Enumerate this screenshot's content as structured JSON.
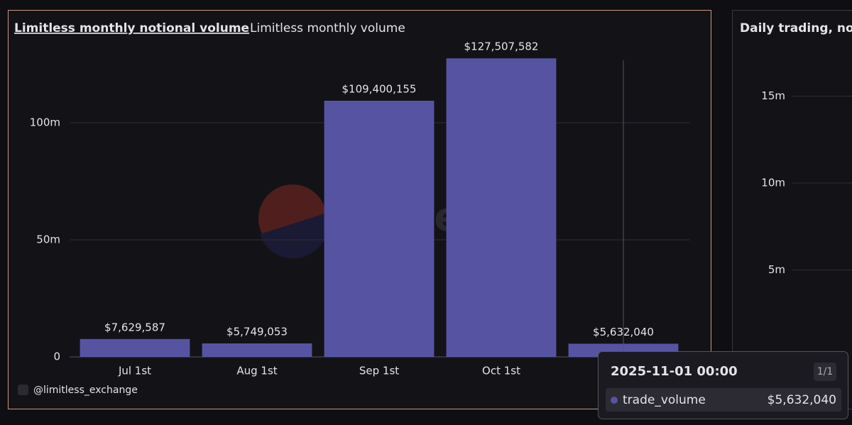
{
  "tabs": [
    "Limitless monthly notional volume",
    "Limitless monthly volume"
  ],
  "watermark": "Dune",
  "footer": "@limitless_exchange",
  "tooltip": {
    "title": "2025-11-01 00:00",
    "page": "1/1"
  },
  "chart_data": [
    {
      "type": "bar",
      "categories": [
        "Jul 1st",
        "Aug 1st",
        "Sep 1st",
        "Oct 1st",
        null
      ],
      "series": [
        {
          "name": "trade_volume",
          "color": "#5654a2",
          "values": [
            7629587,
            5749053,
            109400155,
            127507582,
            5632040
          ],
          "value_labels": [
            "$7,629,587",
            "$5,749,053",
            "$109,400,155",
            "$127,507,582",
            "$5,632,040"
          ]
        }
      ],
      "ylim": [
        0,
        130000000
      ],
      "yticks": [
        0,
        {
          "value": 50000000,
          "label": "50m"
        },
        {
          "value": 100000000,
          "label": "100m"
        }
      ],
      "grid": true
    },
    {
      "type": "bar",
      "title": "Daily trading, not",
      "ylim": [
        0,
        17000000
      ],
      "yticks": [
        {
          "value": 5000000,
          "label": "5m"
        },
        {
          "value": 10000000,
          "label": "10m"
        },
        {
          "value": 15000000,
          "label": "15m"
        }
      ],
      "grid": true
    }
  ]
}
